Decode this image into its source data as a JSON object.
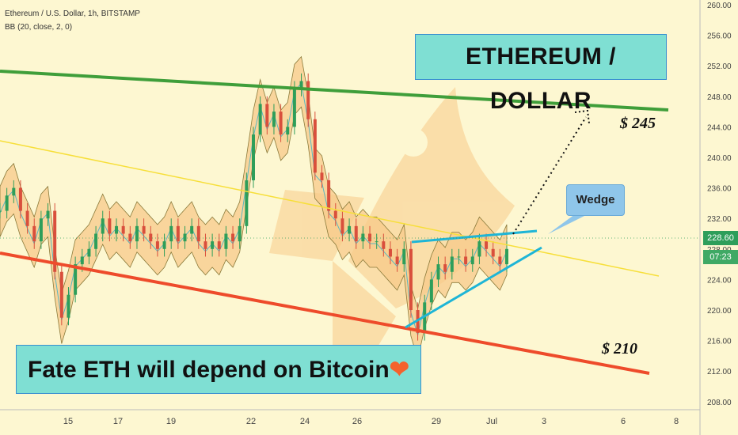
{
  "header": {
    "symbol": "Ethereum / U.S. Dollar, 1h, BITSTAMP",
    "indicator": "BB (20, close, 2, 0)"
  },
  "annotations": {
    "title": "ETHEREUM / DOLLAR",
    "fate": "Fate ETH will depend on Bitcoin",
    "wedge": "Wedge",
    "level_high": "$ 245",
    "level_low": "$ 210"
  },
  "price_axis": {
    "current_price": "228.60",
    "countdown": "07:23"
  },
  "colors": {
    "background": "#fdf7d1",
    "resistance": "#3f9e3a",
    "support": "#ee4b2b",
    "mid_line": "#f7df3a",
    "wedge": "#1eb5d6",
    "band_fill": "#f7c98a",
    "candle_up": "#2e9e5a",
    "candle_down": "#d94f3c"
  },
  "chart_data": {
    "type": "candlestick",
    "y_axis": {
      "range": [
        205,
        261
      ],
      "ticks": [
        "260.00",
        "256.00",
        "252.00",
        "248.00",
        "244.00",
        "240.00",
        "236.00",
        "232.00",
        "228.00",
        "224.00",
        "220.00",
        "216.00",
        "212.00",
        "208.00"
      ]
    },
    "x_axis": {
      "ticks": [
        "15",
        "17",
        "19",
        "22",
        "24",
        "26",
        "29",
        "Jul",
        "3",
        "6",
        "8"
      ]
    },
    "price_series": [
      233,
      235,
      236,
      233,
      231,
      229,
      232,
      233,
      225,
      219,
      222,
      226,
      227,
      228,
      230,
      232,
      230,
      231,
      230,
      229,
      231,
      230,
      229,
      228,
      229,
      231,
      229,
      230,
      231,
      229,
      228,
      229,
      228,
      230,
      229,
      231,
      237,
      243,
      247,
      244,
      246,
      243,
      244,
      249,
      250,
      245,
      238,
      237,
      233,
      232,
      230,
      231,
      229,
      230,
      229,
      229,
      228,
      227,
      226,
      228,
      220,
      217,
      221,
      224,
      226,
      225,
      227,
      227,
      226,
      227,
      229,
      228,
      227,
      226,
      228
    ]
  }
}
